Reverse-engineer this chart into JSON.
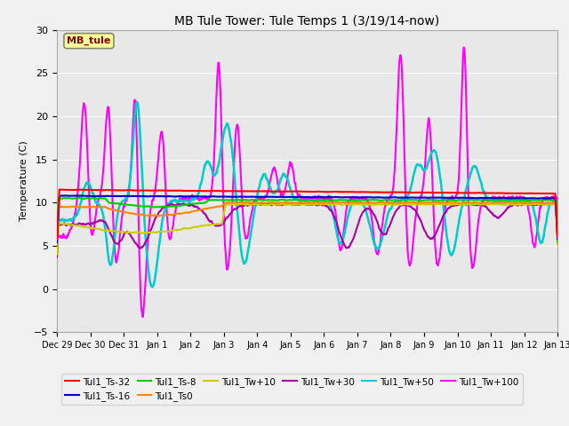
{
  "title": "MB Tule Tower: Tule Temps 1 (3/19/14-now)",
  "ylabel": "Temperature (C)",
  "xlim": [
    0,
    15
  ],
  "ylim": [
    -5,
    30
  ],
  "yticks": [
    -5,
    0,
    5,
    10,
    15,
    20,
    25,
    30
  ],
  "xtick_labels": [
    "Dec 29",
    "Dec 30",
    "Dec 31",
    "Jan 1",
    "Jan 2",
    "Jan 3",
    "Jan 4",
    "Jan 5",
    "Jan 6",
    "Jan 7",
    "Jan 8",
    "Jan 9",
    "Jan 10",
    "Jan 11",
    "Jan 12",
    "Jan 13"
  ],
  "fig_bg": "#f0f0f0",
  "plot_bg": "#e8e8e8",
  "grid_color": "#ffffff",
  "legend_label": "MB_tule",
  "legend_box_facecolor": "#ffff99",
  "legend_box_edgecolor": "#888866",
  "legend_text_color": "#880000",
  "series": {
    "Tul1_Ts-32": {
      "color": "#ff0000",
      "lw": 1.5,
      "zorder": 10
    },
    "Tul1_Ts-16": {
      "color": "#0000cc",
      "lw": 1.5,
      "zorder": 9
    },
    "Tul1_Ts-8": {
      "color": "#00cc00",
      "lw": 1.5,
      "zorder": 8
    },
    "Tul1_Ts0": {
      "color": "#ff8800",
      "lw": 1.5,
      "zorder": 7
    },
    "Tul1_Tw+10": {
      "color": "#cccc00",
      "lw": 1.5,
      "zorder": 6
    },
    "Tul1_Tw+30": {
      "color": "#aa00aa",
      "lw": 1.5,
      "zorder": 5
    },
    "Tul1_Tw+50": {
      "color": "#00cccc",
      "lw": 1.8,
      "zorder": 4
    },
    "Tul1_Tw+100": {
      "color": "#ff00ff",
      "lw": 1.5,
      "zorder": 3
    }
  },
  "legend_order": [
    "Tul1_Ts-32",
    "Tul1_Ts-16",
    "Tul1_Ts-8",
    "Tul1_Ts0",
    "Tul1_Tw+10",
    "Tul1_Tw+30",
    "Tul1_Tw+50",
    "Tul1_Tw+100"
  ]
}
